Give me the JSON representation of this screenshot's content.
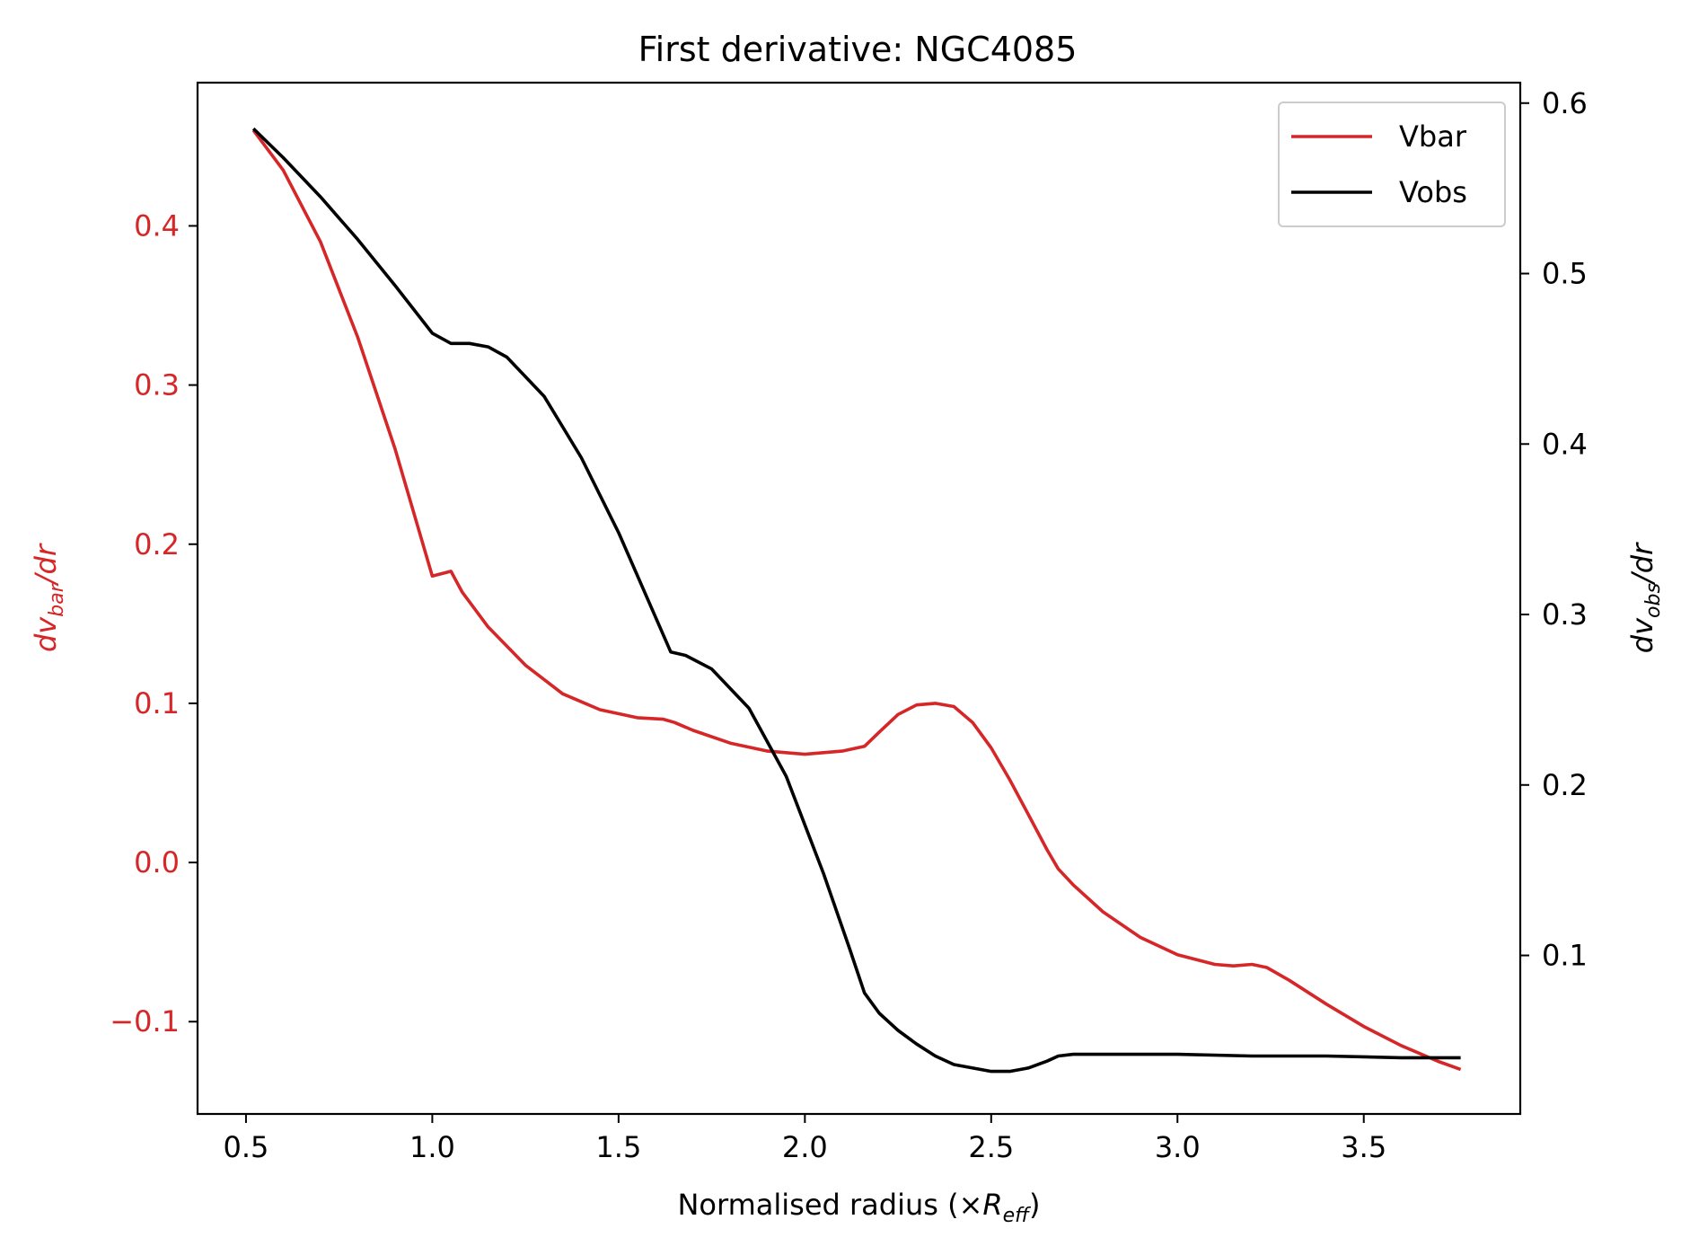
{
  "chart_data": {
    "type": "line",
    "title": "First derivative: NGC4085",
    "xlabel": {
      "main": "Normalised radius (×",
      "italic": "R",
      "sub": "eff",
      "close": ")"
    },
    "ylabel_left": {
      "pre": "dv",
      "sub": "bar",
      "post": "/dr"
    },
    "ylabel_right": {
      "pre": "dv",
      "sub": "obs",
      "post": "/dr"
    },
    "xlim": [
      0.37,
      3.92
    ],
    "ylim_left": [
      -0.158,
      0.49
    ],
    "ylim_right": [
      0.007,
      0.612
    ],
    "x_ticks": [
      0.5,
      1.0,
      1.5,
      2.0,
      2.5,
      3.0,
      3.5
    ],
    "x_tick_labels": [
      "0.5",
      "1.0",
      "1.5",
      "2.0",
      "2.5",
      "3.0",
      "3.5"
    ],
    "y_left_ticks": [
      -0.1,
      0.0,
      0.1,
      0.2,
      0.3,
      0.4
    ],
    "y_left_tick_labels": [
      "−0.1",
      "0.0",
      "0.1",
      "0.2",
      "0.3",
      "0.4"
    ],
    "y_right_ticks": [
      0.1,
      0.2,
      0.3,
      0.4,
      0.5,
      0.6
    ],
    "y_right_tick_labels": [
      "0.1",
      "0.2",
      "0.3",
      "0.4",
      "0.5",
      "0.6"
    ],
    "legend_position": "top-right",
    "grid": false,
    "colors": {
      "vbar": "#d62728",
      "vobs": "#000000",
      "left_axis": "#d62728",
      "right_axis": "#000000"
    },
    "series": [
      {
        "name": "Vbar",
        "axis": "left",
        "color": "#d62728",
        "x": [
          0.52,
          0.6,
          0.7,
          0.8,
          0.9,
          1.0,
          1.05,
          1.08,
          1.15,
          1.25,
          1.35,
          1.45,
          1.55,
          1.62,
          1.65,
          1.7,
          1.8,
          1.9,
          2.0,
          2.1,
          2.16,
          2.2,
          2.25,
          2.3,
          2.35,
          2.4,
          2.45,
          2.5,
          2.55,
          2.6,
          2.65,
          2.68,
          2.72,
          2.8,
          2.9,
          3.0,
          3.1,
          3.15,
          3.2,
          3.24,
          3.3,
          3.4,
          3.5,
          3.6,
          3.7,
          3.76
        ],
        "values": [
          0.46,
          0.435,
          0.39,
          0.33,
          0.26,
          0.18,
          0.183,
          0.17,
          0.148,
          0.124,
          0.106,
          0.096,
          0.091,
          0.09,
          0.088,
          0.083,
          0.075,
          0.07,
          0.068,
          0.07,
          0.073,
          0.082,
          0.093,
          0.099,
          0.1,
          0.098,
          0.088,
          0.072,
          0.052,
          0.03,
          0.008,
          -0.004,
          -0.014,
          -0.031,
          -0.047,
          -0.058,
          -0.064,
          -0.065,
          -0.064,
          -0.066,
          -0.074,
          -0.089,
          -0.103,
          -0.115,
          -0.125,
          -0.13
        ]
      },
      {
        "name": "Vobs",
        "axis": "right",
        "color": "#000000",
        "x": [
          0.52,
          0.6,
          0.7,
          0.8,
          0.9,
          1.0,
          1.05,
          1.1,
          1.15,
          1.2,
          1.3,
          1.4,
          1.5,
          1.6,
          1.64,
          1.68,
          1.75,
          1.85,
          1.95,
          2.05,
          2.12,
          2.16,
          2.2,
          2.25,
          2.3,
          2.35,
          2.4,
          2.5,
          2.55,
          2.6,
          2.65,
          2.68,
          2.72,
          2.8,
          3.0,
          3.2,
          3.4,
          3.6,
          3.76
        ],
        "values": [
          0.585,
          0.568,
          0.545,
          0.52,
          0.493,
          0.465,
          0.459,
          0.459,
          0.457,
          0.451,
          0.428,
          0.392,
          0.348,
          0.298,
          0.278,
          0.276,
          0.268,
          0.245,
          0.205,
          0.148,
          0.104,
          0.078,
          0.066,
          0.056,
          0.048,
          0.041,
          0.036,
          0.032,
          0.032,
          0.034,
          0.038,
          0.041,
          0.042,
          0.042,
          0.042,
          0.041,
          0.041,
          0.04,
          0.04
        ]
      }
    ]
  }
}
